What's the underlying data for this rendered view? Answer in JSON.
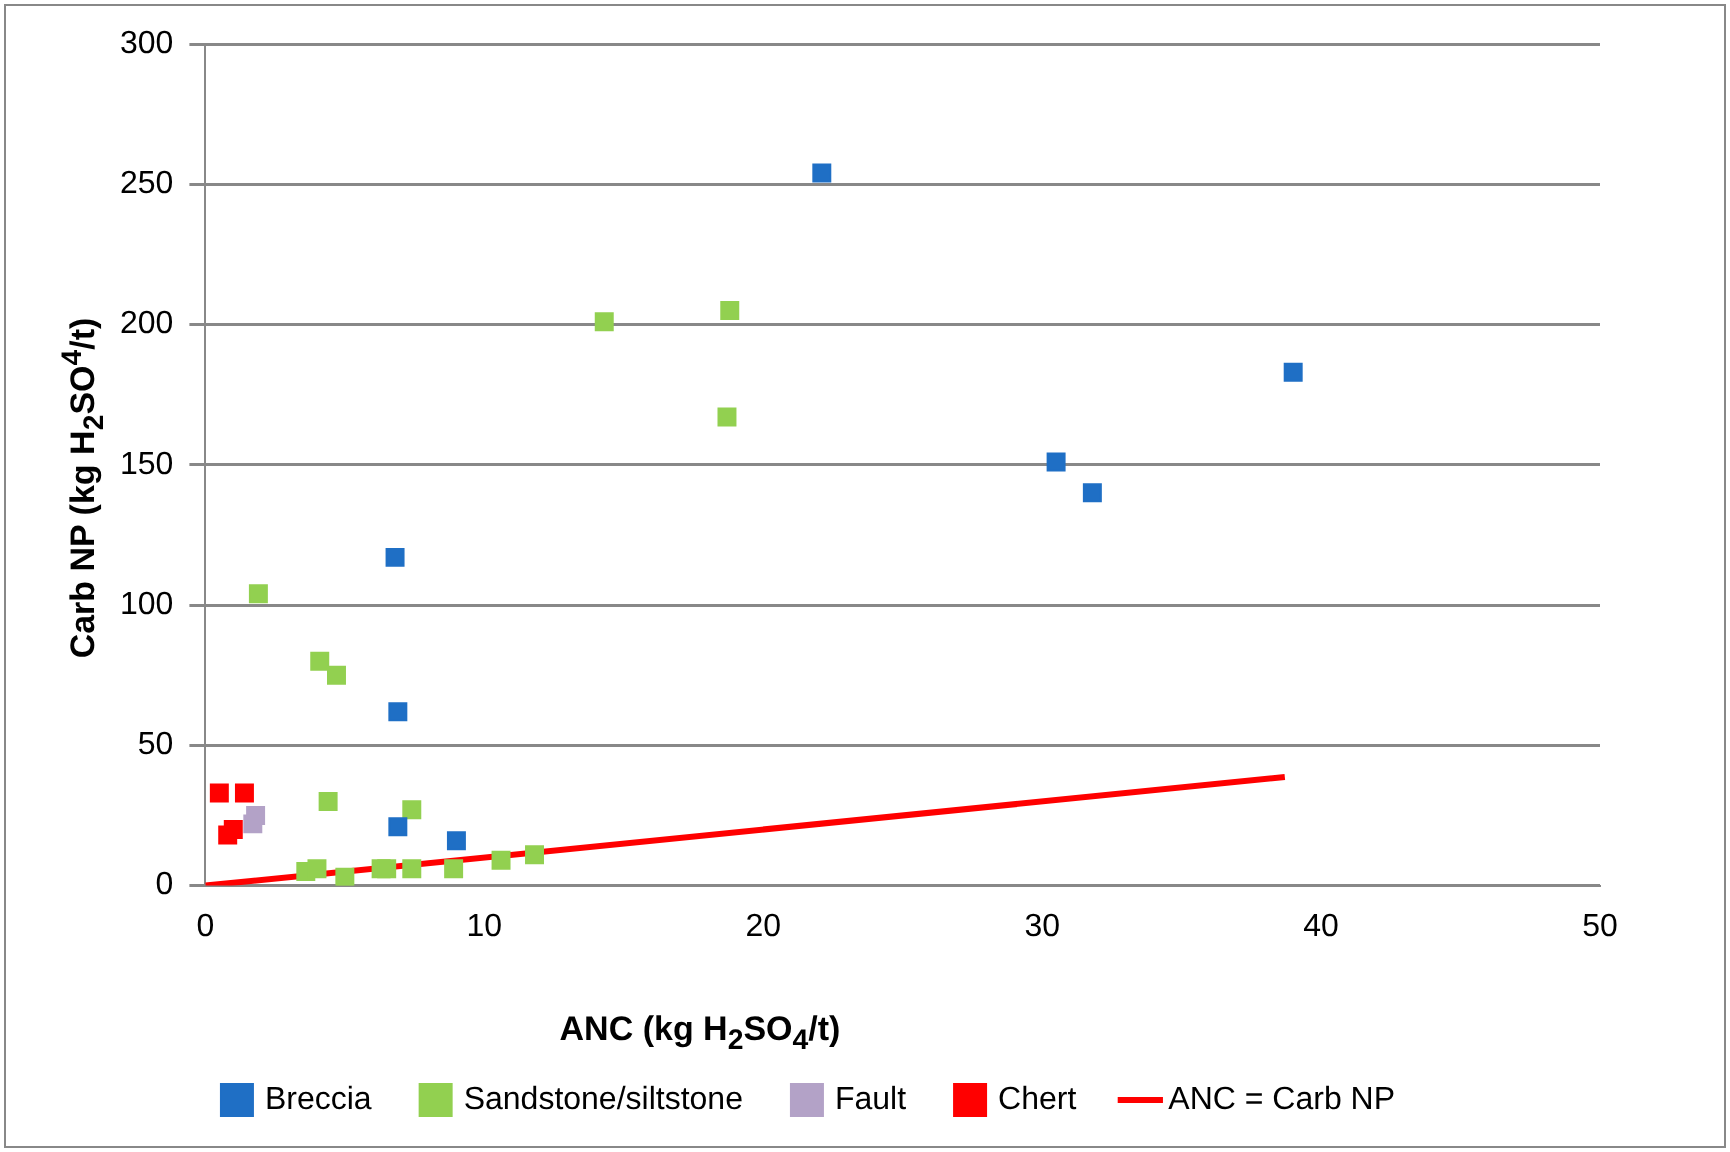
{
  "chart_data": {
    "type": "scatter",
    "xlabel": "ANC  (kg H$_{2}$SO$_{4}$/t)",
    "ylabel": "Carb NP (kg H$_{2}$SO$^{4}$/t)",
    "xlim": [
      0,
      50
    ],
    "xticks": [
      0,
      10,
      20,
      30,
      40,
      50
    ],
    "ylim": [
      0,
      300
    ],
    "yticks": [
      0,
      50,
      100,
      150,
      200,
      250,
      300
    ],
    "grid": "y",
    "legend": "bottom",
    "marker": "square",
    "series": [
      {
        "name": "Breccia",
        "color": "#1f6fc5",
        "x": [
          22.1,
          30.5,
          31.8,
          39.0,
          6.8,
          6.9,
          6.9,
          9.0
        ],
        "values": [
          254,
          151,
          140,
          183,
          117,
          62,
          21,
          16
        ]
      },
      {
        "name": "Sandstone/siltstone",
        "color": "#92d050",
        "x": [
          1.9,
          4.1,
          4.7,
          4.4,
          7.4,
          14.3,
          18.8,
          18.7,
          3.6,
          4.0,
          5.0,
          6.3,
          6.5,
          7.4,
          8.9,
          10.6,
          11.8
        ],
        "values": [
          104,
          80,
          75,
          30,
          27,
          201,
          205,
          167,
          5,
          6,
          3,
          6,
          6,
          6,
          6,
          9,
          11
        ]
      },
      {
        "name": "Fault",
        "color": "#b3a2c7",
        "x": [
          1.8,
          1.7
        ],
        "values": [
          25,
          22
        ]
      },
      {
        "name": "Chert",
        "color": "#ff0000",
        "x": [
          0.5,
          1.4,
          0.8,
          1.0
        ],
        "values": [
          33,
          33,
          18,
          20
        ]
      },
      {
        "name": "ANC = Carb NP",
        "type": "line",
        "marker": "none",
        "color": "#ff0000",
        "x": [
          0,
          38.7
        ],
        "values": [
          0,
          38.7
        ]
      }
    ]
  }
}
